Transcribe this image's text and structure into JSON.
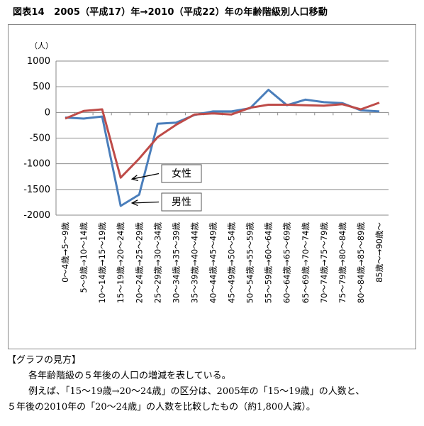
{
  "page": {
    "title": "図表14　2005（平成17）年→2010（平成22）年の年齢階級別人口移動"
  },
  "chart_data": {
    "type": "line",
    "unit_label": "（人）",
    "ylim": [
      -2000,
      1000
    ],
    "yticks": [
      "1000",
      "500",
      "0",
      "-500",
      "-1000",
      "-1500",
      "-2000"
    ],
    "ytick_values": [
      1000,
      500,
      0,
      -500,
      -1000,
      -1500,
      -2000
    ],
    "grid": true,
    "categories": [
      "0～4歳→5～9歳",
      "5～9歳→10～14歳",
      "10～14歳→15～19歳",
      "15～19歳→20～24歳",
      "20～24歳→25～29歳",
      "25～29歳→30～34歳",
      "30～34歳→35～39歳",
      "35～39歳→40～44歳",
      "40～44歳→45～49歳",
      "45～49歳→50～54歳",
      "50～54歳→55～59歳",
      "55～59歳→60～64歳",
      "60～64歳→65～69歳",
      "65～69歳→70～74歳",
      "70～74歳→75～79歳",
      "75～79歳→80～84歳",
      "80～84歳→85～89歳",
      "85歳～→90歳～"
    ],
    "series": [
      {
        "name": "男性",
        "color": "#4a7ebb",
        "values": [
          -100,
          -120,
          -80,
          -1820,
          -1600,
          -220,
          -200,
          -50,
          20,
          20,
          80,
          440,
          140,
          250,
          200,
          180,
          40,
          20
        ]
      },
      {
        "name": "女性",
        "color": "#be4b48",
        "values": [
          -120,
          30,
          60,
          -1270,
          -900,
          -480,
          -240,
          -40,
          -20,
          -40,
          90,
          150,
          150,
          140,
          130,
          160,
          60,
          190
        ]
      }
    ],
    "annotations": [
      {
        "label": "女性",
        "series": "女性",
        "index": 3
      },
      {
        "label": "男性",
        "series": "男性",
        "index": 3
      }
    ]
  },
  "notes": {
    "heading": "【グラフの見方】",
    "line1": "各年齢階級の５年後の人口の増減を表している。",
    "line2": "例えば、「15～19歳→20～24歳」の区分は、2005年の「15～19歳」の人数と、",
    "line3": "５年後の2010年の「20～24歳」の人数を比較したもの（約1,800人減）。"
  }
}
